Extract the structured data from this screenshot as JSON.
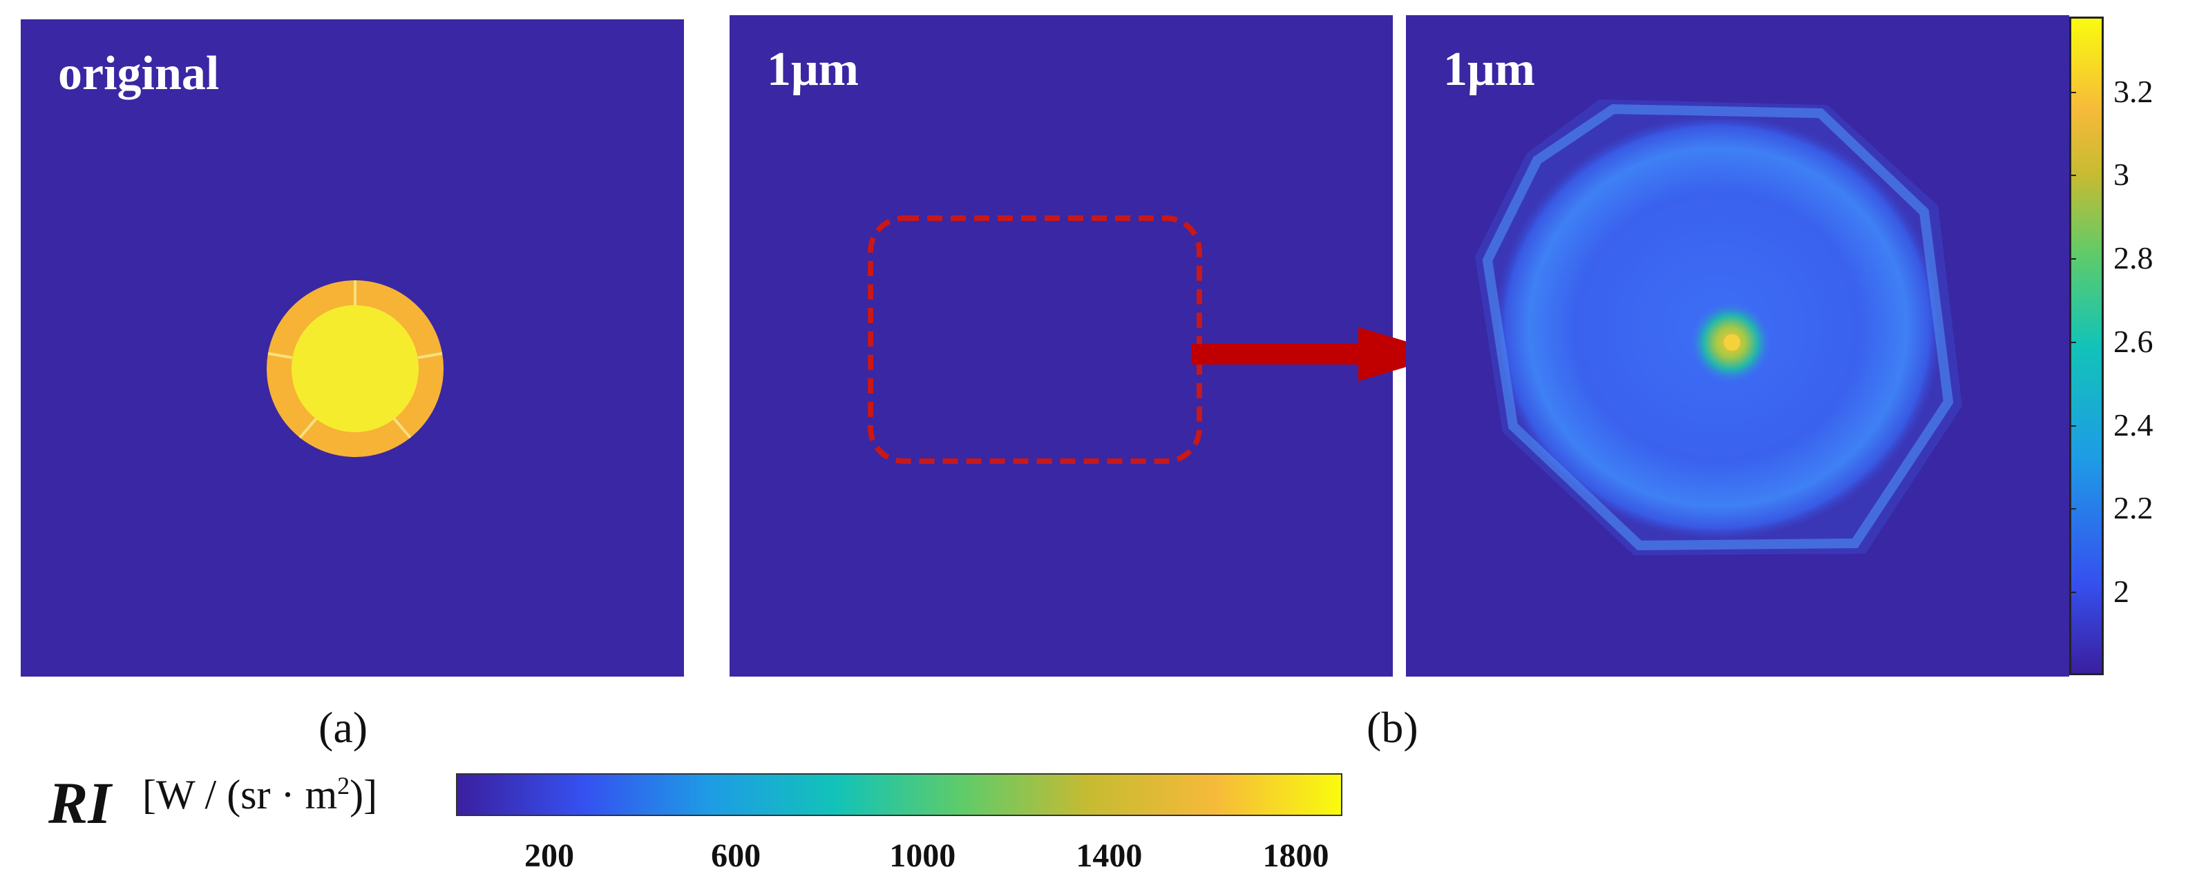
{
  "panels": {
    "a_label": "original",
    "b1_label": "1μm",
    "b2_label": "1μm"
  },
  "subfigure_labels": {
    "a": "(a)",
    "b": "(b)"
  },
  "colors": {
    "background": "#3a27a3",
    "disk_inner": "#f6ec2e",
    "disk_outer": "#f7b336",
    "highlight_box": "#c81818",
    "arrow": "#c00000"
  },
  "chart_data": [
    {
      "type": "heatmap",
      "title": "original",
      "description_source": "panel (a)",
      "regions": [
        {
          "name": "inner disk",
          "value": 3.35
        },
        {
          "name": "outer ring",
          "value": 3.1
        },
        {
          "name": "background",
          "value": 1.8
        }
      ]
    },
    {
      "type": "heatmap",
      "title": "1μm",
      "colorbar": {
        "orientation": "vertical",
        "range": [
          1.8,
          3.38
        ],
        "ticks": [
          2,
          2.2,
          2.4,
          2.6,
          2.8,
          3,
          3.2
        ],
        "tick_labels": [
          "2",
          "2.2",
          "2.4",
          "2.6",
          "2.8",
          "3",
          "3.2"
        ]
      }
    },
    {
      "type": "colorbar",
      "orientation": "horizontal",
      "label": "RI",
      "unit": "[W / (sr · m",
      "unit_exponent": "2",
      "unit_close": ")]",
      "range": [
        0,
        1900
      ],
      "ticks": [
        200,
        600,
        1000,
        1400,
        1800
      ],
      "tick_labels": [
        "200",
        "600",
        "1000",
        "1400",
        "1800"
      ],
      "colormap": [
        "#3b1f9f",
        "#3551f0",
        "#1e9ce5",
        "#12c3b8",
        "#5fcb6a",
        "#c6bb32",
        "#f6ba3a",
        "#f9fb0e"
      ]
    }
  ]
}
